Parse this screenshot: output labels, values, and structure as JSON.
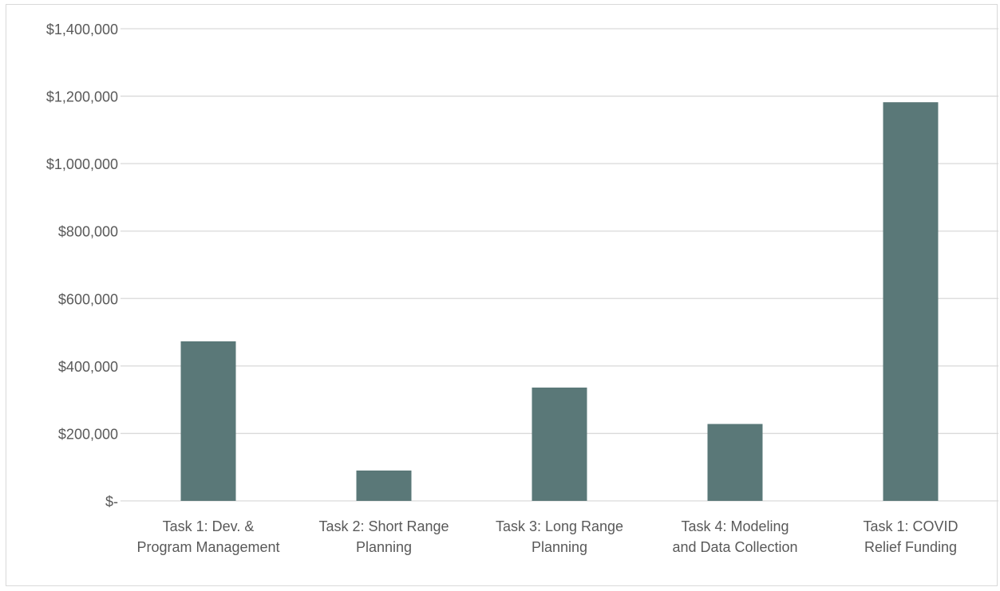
{
  "chart_data": {
    "type": "bar",
    "title": "",
    "xlabel": "",
    "ylabel": "",
    "categories": [
      [
        "Task 1:  Dev. &",
        "Program Management"
      ],
      [
        "Task 2:  Short Range",
        "Planning"
      ],
      [
        "Task 3:  Long Range",
        "Planning"
      ],
      [
        "Task 4:  Modeling",
        "and Data Collection"
      ],
      [
        "Task 1:  COVID",
        "Relief Funding"
      ]
    ],
    "values": [
      473000,
      90000,
      336000,
      228000,
      1182000
    ],
    "ylim": [
      0,
      1400000
    ],
    "yticks": [
      0,
      200000,
      400000,
      600000,
      800000,
      1000000,
      1200000,
      1400000
    ],
    "ytick_labels": [
      "$-",
      "$200,000",
      "$400,000",
      "$600,000",
      "$800,000",
      "$1,000,000",
      "$1,200,000",
      "$1,400,000"
    ],
    "grid": true,
    "legend": "none",
    "bar_color": "#5a7878",
    "grid_color": "#d9d9d9"
  }
}
